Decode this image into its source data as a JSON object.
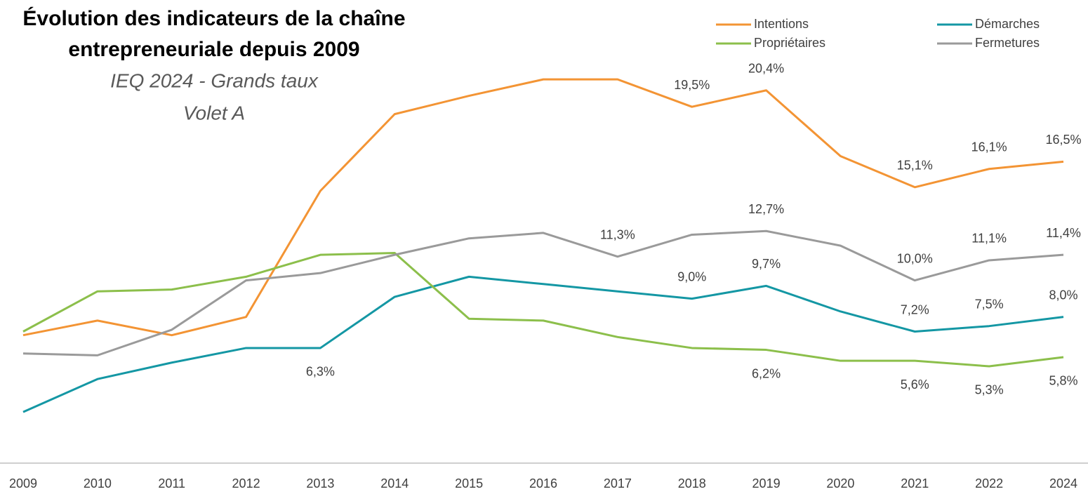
{
  "chart_data": {
    "type": "line",
    "title": [
      "Évolution des indicateurs de la chaîne",
      "entrepreneuriale depuis 2009"
    ],
    "subtitle": [
      "IEQ 2024 - Grands taux",
      "Volet A"
    ],
    "categories": [
      "2009",
      "2010",
      "2011",
      "2012",
      "2013",
      "2014",
      "2015",
      "2016",
      "2017",
      "2018",
      "2019",
      "2020",
      "2021",
      "2022",
      "2024"
    ],
    "ylim": [
      0,
      24.5
    ],
    "series": [
      {
        "name": "Intentions",
        "color": "#f39434",
        "values": [
          7.0,
          7.8,
          7.0,
          8.0,
          14.9,
          19.1,
          20.1,
          21.0,
          21.0,
          19.5,
          20.4,
          16.8,
          15.1,
          16.1,
          16.5
        ],
        "value_labels": [
          null,
          null,
          null,
          null,
          null,
          null,
          null,
          null,
          null,
          "19,5%",
          "20,4%",
          null,
          "15,1%",
          "16,1%",
          "16,5%"
        ]
      },
      {
        "name": "Démarches",
        "color": "#1497a4",
        "values": [
          2.8,
          4.6,
          5.5,
          6.3,
          6.3,
          9.1,
          10.2,
          9.8,
          9.4,
          9.0,
          9.7,
          8.3,
          7.2,
          7.5,
          8.0
        ],
        "value_labels": [
          null,
          null,
          null,
          null,
          "6,3%",
          null,
          null,
          null,
          null,
          "9,0%",
          "9,7%",
          null,
          "7,2%",
          "7,5%",
          "8,0%"
        ]
      },
      {
        "name": "Propriétaires",
        "color": "#8cbf4b",
        "values": [
          7.2,
          9.4,
          9.5,
          10.2,
          11.4,
          11.5,
          7.9,
          7.8,
          6.9,
          6.3,
          6.2,
          5.6,
          5.6,
          5.3,
          5.8
        ],
        "value_labels": [
          null,
          null,
          null,
          null,
          null,
          null,
          null,
          null,
          null,
          null,
          "6,2%",
          null,
          "5,6%",
          "5,3%",
          "5,8%"
        ]
      },
      {
        "name": "Fermetures",
        "color": "#9a9a9a",
        "values": [
          6.0,
          5.9,
          7.3,
          10.0,
          10.4,
          11.4,
          12.3,
          12.6,
          11.3,
          12.5,
          12.7,
          11.9,
          10.0,
          11.1,
          11.4
        ],
        "value_labels": [
          null,
          null,
          null,
          null,
          null,
          null,
          null,
          null,
          "11,3%",
          null,
          "12,7%",
          null,
          "10,0%",
          "11,1%",
          "11,4%"
        ]
      }
    ]
  }
}
